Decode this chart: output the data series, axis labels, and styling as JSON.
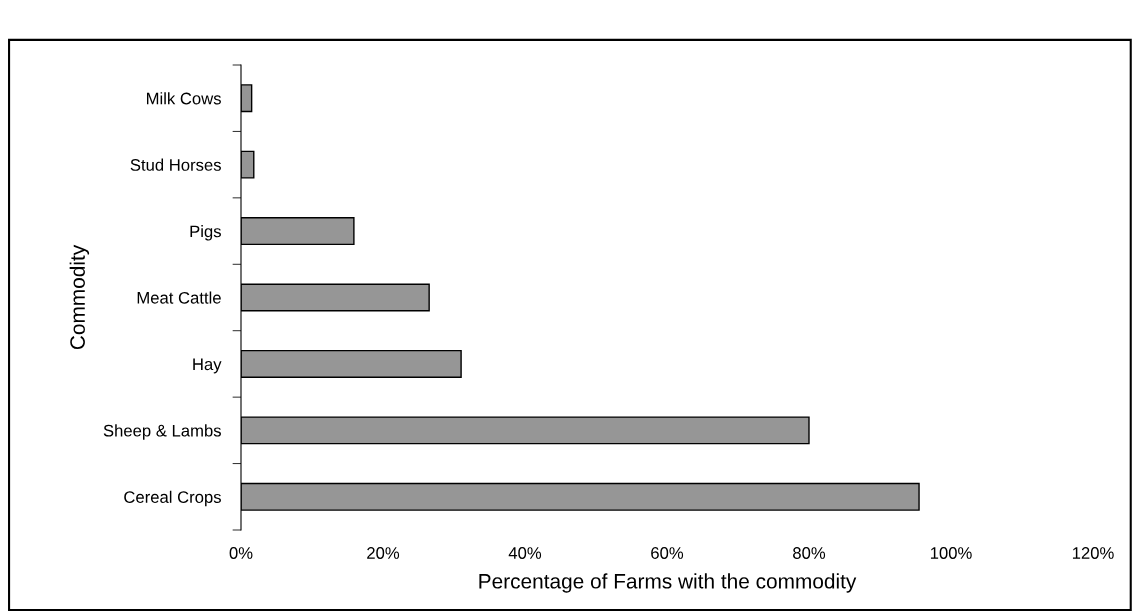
{
  "chart_data": {
    "type": "bar",
    "orientation": "horizontal",
    "xlabel": "Percentage of Farms with the commodity",
    "ylabel": "Commodity",
    "categories": [
      "Milk Cows",
      "Stud Horses",
      "Pigs",
      "Meat Cattle",
      "Hay",
      "Sheep & Lambs",
      "Cereal Crops"
    ],
    "values": [
      1.5,
      1.8,
      15.9,
      26.5,
      31,
      80,
      95.5
    ],
    "color": "#969696",
    "xlim": [
      0,
      120
    ],
    "xticks": [
      {
        "value": 0,
        "label": "0%"
      },
      {
        "value": 20,
        "label": "20%"
      },
      {
        "value": 40,
        "label": "40%"
      },
      {
        "value": 60,
        "label": "60%"
      },
      {
        "value": 80,
        "label": "80%"
      },
      {
        "value": 100,
        "label": "100%"
      },
      {
        "value": 120,
        "label": "120%"
      }
    ],
    "grid": false,
    "legend": false
  }
}
